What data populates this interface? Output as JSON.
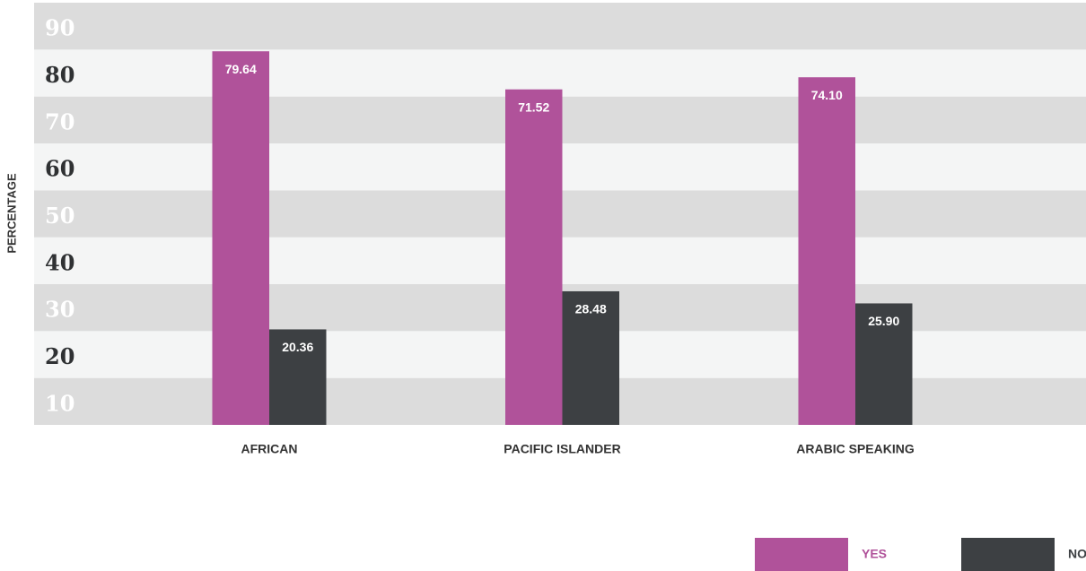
{
  "chart_data": {
    "type": "bar",
    "y_label": "PERCENTAGE",
    "categories": [
      "AFRICAN",
      "PACIFIC ISLANDER",
      "ARABIC SPEAKING"
    ],
    "series": [
      {
        "name": "YES",
        "color": "#b0529a",
        "values": [
          79.64,
          71.52,
          74.1
        ],
        "value_labels": [
          "79.64",
          "71.52",
          "74.10"
        ]
      },
      {
        "name": "NO",
        "color": "#3d4043",
        "values": [
          20.36,
          28.48,
          25.9
        ],
        "value_labels": [
          "20.36",
          "28.48",
          "25.90"
        ]
      }
    ],
    "ylim": [
      0,
      90
    ],
    "yticks": [
      10,
      20,
      30,
      40,
      50,
      60,
      70,
      80,
      90
    ],
    "grid": true,
    "legend": "bottom-right"
  }
}
